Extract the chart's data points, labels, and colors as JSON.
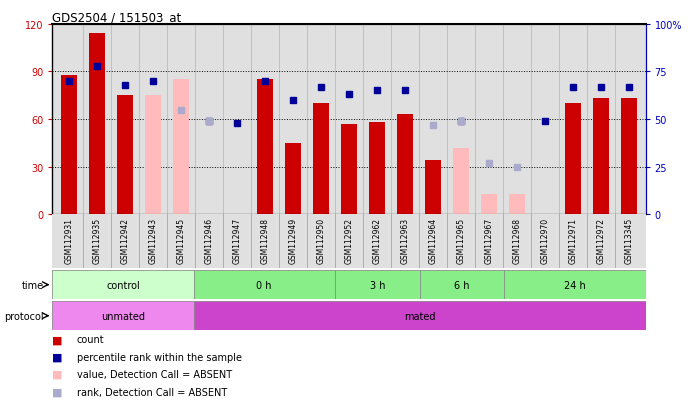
{
  "title": "GDS2504 / 151503_at",
  "samples": [
    "GSM112931",
    "GSM112935",
    "GSM112942",
    "GSM112943",
    "GSM112945",
    "GSM112946",
    "GSM112947",
    "GSM112948",
    "GSM112949",
    "GSM112950",
    "GSM112952",
    "GSM112962",
    "GSM112963",
    "GSM112964",
    "GSM112965",
    "GSM112967",
    "GSM112968",
    "GSM112970",
    "GSM112971",
    "GSM112972",
    "GSM113345"
  ],
  "red_values": [
    88,
    114,
    75,
    null,
    null,
    null,
    null,
    85,
    45,
    70,
    57,
    58,
    63,
    34,
    null,
    null,
    null,
    null,
    70,
    73,
    73
  ],
  "pink_values": [
    null,
    null,
    null,
    75,
    85,
    null,
    null,
    null,
    null,
    null,
    null,
    null,
    null,
    null,
    42,
    13,
    13,
    null,
    null,
    null,
    null
  ],
  "blue_values": [
    70,
    78,
    68,
    70,
    null,
    49,
    48,
    70,
    60,
    67,
    63,
    65,
    65,
    null,
    49,
    null,
    null,
    49,
    67,
    67,
    67
  ],
  "light_blue_values": [
    null,
    null,
    null,
    null,
    55,
    49,
    null,
    null,
    null,
    null,
    null,
    null,
    null,
    47,
    49,
    27,
    25,
    null,
    null,
    null,
    null
  ],
  "ylim_left": [
    0,
    120
  ],
  "ylim_right": [
    0,
    100
  ],
  "yticks_left": [
    0,
    30,
    60,
    90,
    120
  ],
  "yticks_right": [
    0,
    25,
    50,
    75,
    100
  ],
  "time_groups": [
    {
      "label": "control",
      "start": 0,
      "end": 5,
      "color": "#ccffcc"
    },
    {
      "label": "0 h",
      "start": 5,
      "end": 10,
      "color": "#88ee88"
    },
    {
      "label": "3 h",
      "start": 10,
      "end": 13,
      "color": "#88ee88"
    },
    {
      "label": "6 h",
      "start": 13,
      "end": 16,
      "color": "#88ee88"
    },
    {
      "label": "24 h",
      "start": 16,
      "end": 21,
      "color": "#88ee88"
    }
  ],
  "protocol_groups": [
    {
      "label": "unmated",
      "start": 0,
      "end": 5,
      "color": "#ee88ee"
    },
    {
      "label": "mated",
      "start": 5,
      "end": 21,
      "color": "#cc44cc"
    }
  ],
  "red_color": "#cc0000",
  "pink_color": "#ffbbbb",
  "blue_color": "#000099",
  "light_blue_color": "#aaaacc",
  "left_axis_color": "#cc0000",
  "right_axis_color": "#0000bb",
  "bg_color": "#e0e0e0",
  "legend_items": [
    {
      "color": "#cc0000",
      "label": "count"
    },
    {
      "color": "#000099",
      "label": "percentile rank within the sample"
    },
    {
      "color": "#ffbbbb",
      "label": "value, Detection Call = ABSENT"
    },
    {
      "color": "#aaaacc",
      "label": "rank, Detection Call = ABSENT"
    }
  ]
}
